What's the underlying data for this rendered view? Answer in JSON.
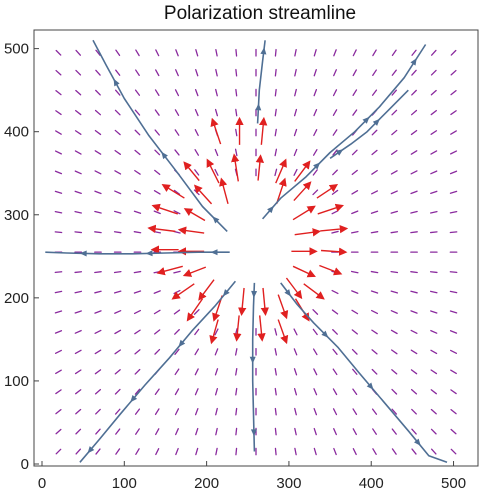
{
  "chart_data": {
    "type": "vector-field",
    "title": "Polarization streamline",
    "xlabel": "",
    "ylabel": "",
    "xlim": [
      0,
      520
    ],
    "ylim": [
      0,
      520
    ],
    "x_ticks": [
      0,
      100,
      200,
      300,
      400,
      500
    ],
    "y_ticks": [
      0,
      100,
      200,
      300,
      400,
      500
    ],
    "grid": false,
    "center": [
      260,
      255
    ],
    "vector_grid": {
      "x_start": 20,
      "x_end": 500,
      "x_step": 24,
      "y_start": 15,
      "y_end": 505,
      "y_step": 24
    },
    "strong_vectors": [
      {
        "x": 212,
        "y": 400,
        "dx": -10,
        "dy": 30
      },
      {
        "x": 240,
        "y": 400,
        "dx": 0,
        "dy": 32
      },
      {
        "x": 268,
        "y": 400,
        "dx": 3,
        "dy": 32
      },
      {
        "x": 182,
        "y": 352,
        "dx": -18,
        "dy": 22
      },
      {
        "x": 208,
        "y": 352,
        "dx": -14,
        "dy": 28
      },
      {
        "x": 236,
        "y": 356,
        "dx": -5,
        "dy": 32
      },
      {
        "x": 264,
        "y": 356,
        "dx": 3,
        "dy": 30
      },
      {
        "x": 290,
        "y": 352,
        "dx": 12,
        "dy": 28
      },
      {
        "x": 316,
        "y": 352,
        "dx": 18,
        "dy": 24
      },
      {
        "x": 160,
        "y": 328,
        "dx": -26,
        "dy": 16
      },
      {
        "x": 196,
        "y": 324,
        "dx": -20,
        "dy": 22
      },
      {
        "x": 222,
        "y": 328,
        "dx": -8,
        "dy": 30
      },
      {
        "x": 290,
        "y": 328,
        "dx": 10,
        "dy": 30
      },
      {
        "x": 316,
        "y": 328,
        "dx": 20,
        "dy": 22
      },
      {
        "x": 346,
        "y": 328,
        "dx": 24,
        "dy": 16
      },
      {
        "x": 150,
        "y": 306,
        "dx": -30,
        "dy": 10
      },
      {
        "x": 186,
        "y": 300,
        "dx": -24,
        "dy": 14
      },
      {
        "x": 318,
        "y": 302,
        "dx": 26,
        "dy": 16
      },
      {
        "x": 350,
        "y": 306,
        "dx": 30,
        "dy": 10
      },
      {
        "x": 146,
        "y": 282,
        "dx": -32,
        "dy": 4
      },
      {
        "x": 182,
        "y": 280,
        "dx": -30,
        "dy": 4
      },
      {
        "x": 322,
        "y": 278,
        "dx": 30,
        "dy": 4
      },
      {
        "x": 354,
        "y": 282,
        "dx": 32,
        "dy": 3
      },
      {
        "x": 150,
        "y": 258,
        "dx": -32,
        "dy": 0
      },
      {
        "x": 182,
        "y": 256,
        "dx": -30,
        "dy": 0
      },
      {
        "x": 318,
        "y": 256,
        "dx": 30,
        "dy": 0
      },
      {
        "x": 354,
        "y": 256,
        "dx": 30,
        "dy": -2
      },
      {
        "x": 156,
        "y": 234,
        "dx": -30,
        "dy": -8
      },
      {
        "x": 186,
        "y": 232,
        "dx": -26,
        "dy": -10
      },
      {
        "x": 318,
        "y": 232,
        "dx": 26,
        "dy": -12
      },
      {
        "x": 350,
        "y": 234,
        "dx": 26,
        "dy": -10
      },
      {
        "x": 172,
        "y": 208,
        "dx": -26,
        "dy": -18
      },
      {
        "x": 200,
        "y": 210,
        "dx": -18,
        "dy": -24
      },
      {
        "x": 306,
        "y": 212,
        "dx": 18,
        "dy": -24
      },
      {
        "x": 330,
        "y": 208,
        "dx": 24,
        "dy": -18
      },
      {
        "x": 186,
        "y": 186,
        "dx": -18,
        "dy": -26
      },
      {
        "x": 214,
        "y": 188,
        "dx": -10,
        "dy": -30
      },
      {
        "x": 244,
        "y": 196,
        "dx": -3,
        "dy": -32
      },
      {
        "x": 270,
        "y": 196,
        "dx": 3,
        "dy": -32
      },
      {
        "x": 292,
        "y": 190,
        "dx": 10,
        "dy": -28
      },
      {
        "x": 316,
        "y": 186,
        "dx": 16,
        "dy": -26
      },
      {
        "x": 210,
        "y": 160,
        "dx": -8,
        "dy": -28
      },
      {
        "x": 238,
        "y": 164,
        "dx": -3,
        "dy": -30
      },
      {
        "x": 266,
        "y": 164,
        "dx": 3,
        "dy": -30
      },
      {
        "x": 292,
        "y": 160,
        "dx": 10,
        "dy": -28
      }
    ],
    "streamlines": [
      {
        "name": "",
        "points": [
          [
            225,
            280
          ],
          [
            195,
            310
          ],
          [
            165,
            350
          ],
          [
            130,
            395
          ],
          [
            100,
            440
          ],
          [
            78,
            480
          ],
          [
            62,
            510
          ]
        ]
      },
      {
        "name": "",
        "points": [
          [
            262,
            410
          ],
          [
            264,
            450
          ],
          [
            268,
            485
          ],
          [
            271,
            510
          ]
        ]
      },
      {
        "name": "",
        "points": [
          [
            268,
            295
          ],
          [
            290,
            320
          ],
          [
            320,
            345
          ],
          [
            350,
            375
          ],
          [
            380,
            400
          ],
          [
            410,
            430
          ],
          [
            440,
            465
          ],
          [
            466,
            505
          ]
        ]
      },
      {
        "name": "",
        "points": [
          [
            350,
            368
          ],
          [
            375,
            385
          ],
          [
            395,
            400
          ],
          [
            420,
            425
          ],
          [
            445,
            450
          ]
        ]
      },
      {
        "name": "",
        "points": [
          [
            228,
            255
          ],
          [
            190,
            255
          ],
          [
            150,
            254
          ],
          [
            110,
            253
          ],
          [
            70,
            253
          ],
          [
            30,
            254
          ],
          [
            4,
            255
          ]
        ]
      },
      {
        "name": "",
        "points": [
          [
            258,
            218
          ],
          [
            257,
            190
          ],
          [
            256,
            150
          ],
          [
            256,
            100
          ],
          [
            257,
            60
          ],
          [
            258,
            15
          ]
        ]
      },
      {
        "name": "",
        "points": [
          [
            235,
            220
          ],
          [
            210,
            190
          ],
          [
            182,
            160
          ],
          [
            155,
            128
          ],
          [
            125,
            95
          ],
          [
            95,
            60
          ],
          [
            70,
            30
          ],
          [
            46,
            2
          ]
        ]
      },
      {
        "name": "",
        "points": [
          [
            290,
            218
          ],
          [
            310,
            192
          ],
          [
            330,
            170
          ],
          [
            360,
            140
          ],
          [
            385,
            110
          ],
          [
            415,
            75
          ],
          [
            445,
            40
          ],
          [
            470,
            10
          ],
          [
            492,
            2
          ]
        ]
      }
    ]
  }
}
